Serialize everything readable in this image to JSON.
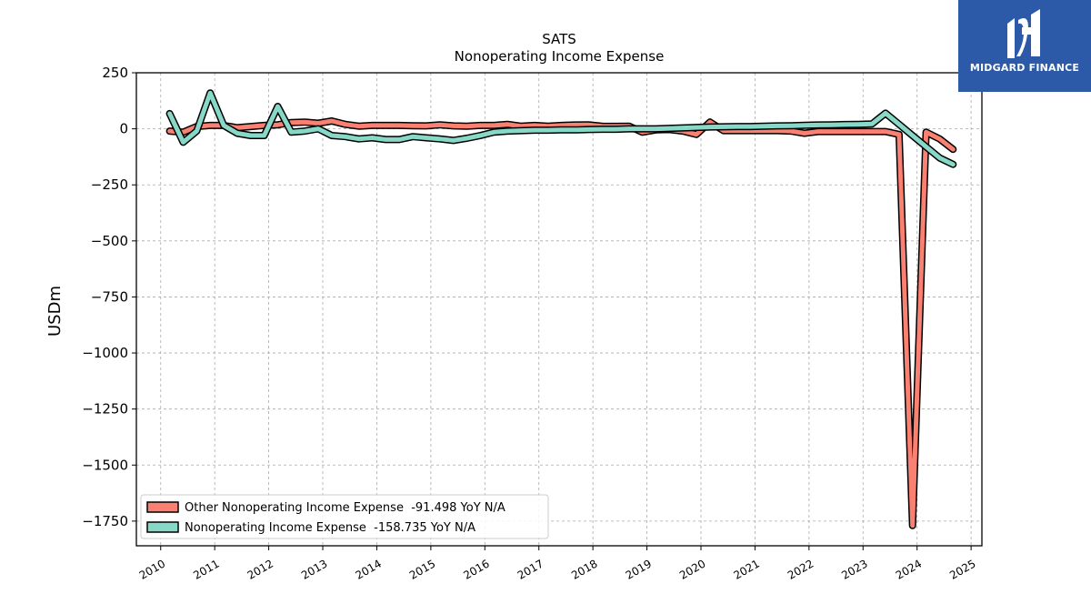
{
  "chart_data": {
    "type": "line",
    "title": "SATS",
    "subtitle": "Nonoperating Income Expense",
    "ylabel": "USDm",
    "xlabel": "",
    "ylim": [
      -1860,
      250
    ],
    "xlim": [
      2009.55,
      2025.2
    ],
    "grid": true,
    "legend_position": "lower-left",
    "yticks": [
      250,
      0,
      -250,
      -500,
      -750,
      -1000,
      -1250,
      -1500,
      -1750
    ],
    "ytick_labels": [
      "250",
      "0",
      "−250",
      "−500",
      "−750",
      "−1000",
      "−1250",
      "−1500",
      "−1750"
    ],
    "xticks": [
      2010,
      2011,
      2012,
      2013,
      2014,
      2015,
      2016,
      2017,
      2018,
      2019,
      2020,
      2021,
      2022,
      2023,
      2024,
      2025
    ],
    "xtick_labels": [
      "2010",
      "2011",
      "2012",
      "2013",
      "2014",
      "2015",
      "2016",
      "2017",
      "2018",
      "2019",
      "2020",
      "2021",
      "2022",
      "2023",
      "2024",
      "2025"
    ],
    "series": [
      {
        "name": "Other Nonoperating Income Expense",
        "legend_label": "Other Nonoperating Income Expense  -91.498 YoY N/A",
        "color": "#fa8072",
        "x": [
          "2010-03",
          "2010-06",
          "2010-09",
          "2010-12",
          "2011-03",
          "2011-06",
          "2011-09",
          "2011-12",
          "2012-03",
          "2012-06",
          "2012-09",
          "2012-12",
          "2013-03",
          "2013-06",
          "2013-09",
          "2013-12",
          "2014-03",
          "2014-06",
          "2014-09",
          "2014-12",
          "2015-03",
          "2015-06",
          "2015-09",
          "2015-12",
          "2016-03",
          "2016-06",
          "2016-09",
          "2016-12",
          "2017-03",
          "2017-06",
          "2017-09",
          "2017-12",
          "2018-03",
          "2018-06",
          "2018-09",
          "2018-12",
          "2019-03",
          "2019-06",
          "2019-09",
          "2019-12",
          "2020-03",
          "2020-06",
          "2020-09",
          "2020-12",
          "2021-03",
          "2021-06",
          "2021-09",
          "2021-12",
          "2022-03",
          "2022-06",
          "2022-09",
          "2022-12",
          "2023-03",
          "2023-06",
          "2023-09",
          "2023-12",
          "2024-03",
          "2024-06",
          "2024-09"
        ],
        "values": [
          -10,
          -15,
          10,
          15,
          15,
          5,
          10,
          15,
          18,
          28,
          30,
          25,
          35,
          20,
          12,
          15,
          15,
          15,
          14,
          13,
          18,
          13,
          12,
          15,
          15,
          20,
          12,
          15,
          12,
          15,
          17,
          18,
          12,
          11,
          12,
          -15,
          -5,
          -3,
          -10,
          -25,
          30,
          -8,
          -8,
          -8,
          -8,
          -8,
          -10,
          -20,
          -12,
          -12,
          -12,
          -12,
          -12,
          -12,
          -25,
          -1770,
          -15,
          -45,
          -91.5
        ]
      },
      {
        "name": "Nonoperating Income Expense",
        "legend_label": "Nonoperating Income Expense  -158.735 YoY N/A",
        "color": "#88d8c8",
        "x": [
          "2010-03",
          "2010-06",
          "2010-09",
          "2010-12",
          "2011-03",
          "2011-06",
          "2011-09",
          "2011-12",
          "2012-03",
          "2012-06",
          "2012-09",
          "2012-12",
          "2013-03",
          "2013-06",
          "2013-09",
          "2013-12",
          "2014-03",
          "2014-06",
          "2014-09",
          "2014-12",
          "2015-03",
          "2015-06",
          "2015-09",
          "2015-12",
          "2016-03",
          "2016-06",
          "2016-09",
          "2016-12",
          "2017-03",
          "2017-06",
          "2017-09",
          "2017-12",
          "2018-03",
          "2018-06",
          "2018-09",
          "2018-12",
          "2019-03",
          "2019-06",
          "2019-09",
          "2019-12",
          "2020-03",
          "2020-06",
          "2020-09",
          "2020-12",
          "2021-03",
          "2021-06",
          "2021-09",
          "2021-12",
          "2022-03",
          "2022-06",
          "2022-09",
          "2022-12",
          "2023-03",
          "2023-06",
          "2023-09",
          "2023-12",
          "2024-03",
          "2024-06",
          "2024-09"
        ],
        "values": [
          68,
          -60,
          -10,
          160,
          15,
          -20,
          -30,
          -30,
          100,
          -15,
          -10,
          0,
          -30,
          -35,
          -45,
          -40,
          -48,
          -48,
          -35,
          -40,
          -45,
          -52,
          -42,
          -30,
          -15,
          -10,
          -8,
          -6,
          -6,
          -5,
          -5,
          -3,
          -2,
          -2,
          0,
          0,
          0,
          2,
          4,
          6,
          8,
          9,
          10,
          10,
          12,
          13,
          14,
          16,
          17,
          18,
          19,
          20,
          22,
          70,
          20,
          -30,
          -80,
          -130,
          -158.7
        ]
      }
    ]
  },
  "logo": {
    "text": "MIDGARD FINANCE",
    "color": "#2d5aa8"
  }
}
